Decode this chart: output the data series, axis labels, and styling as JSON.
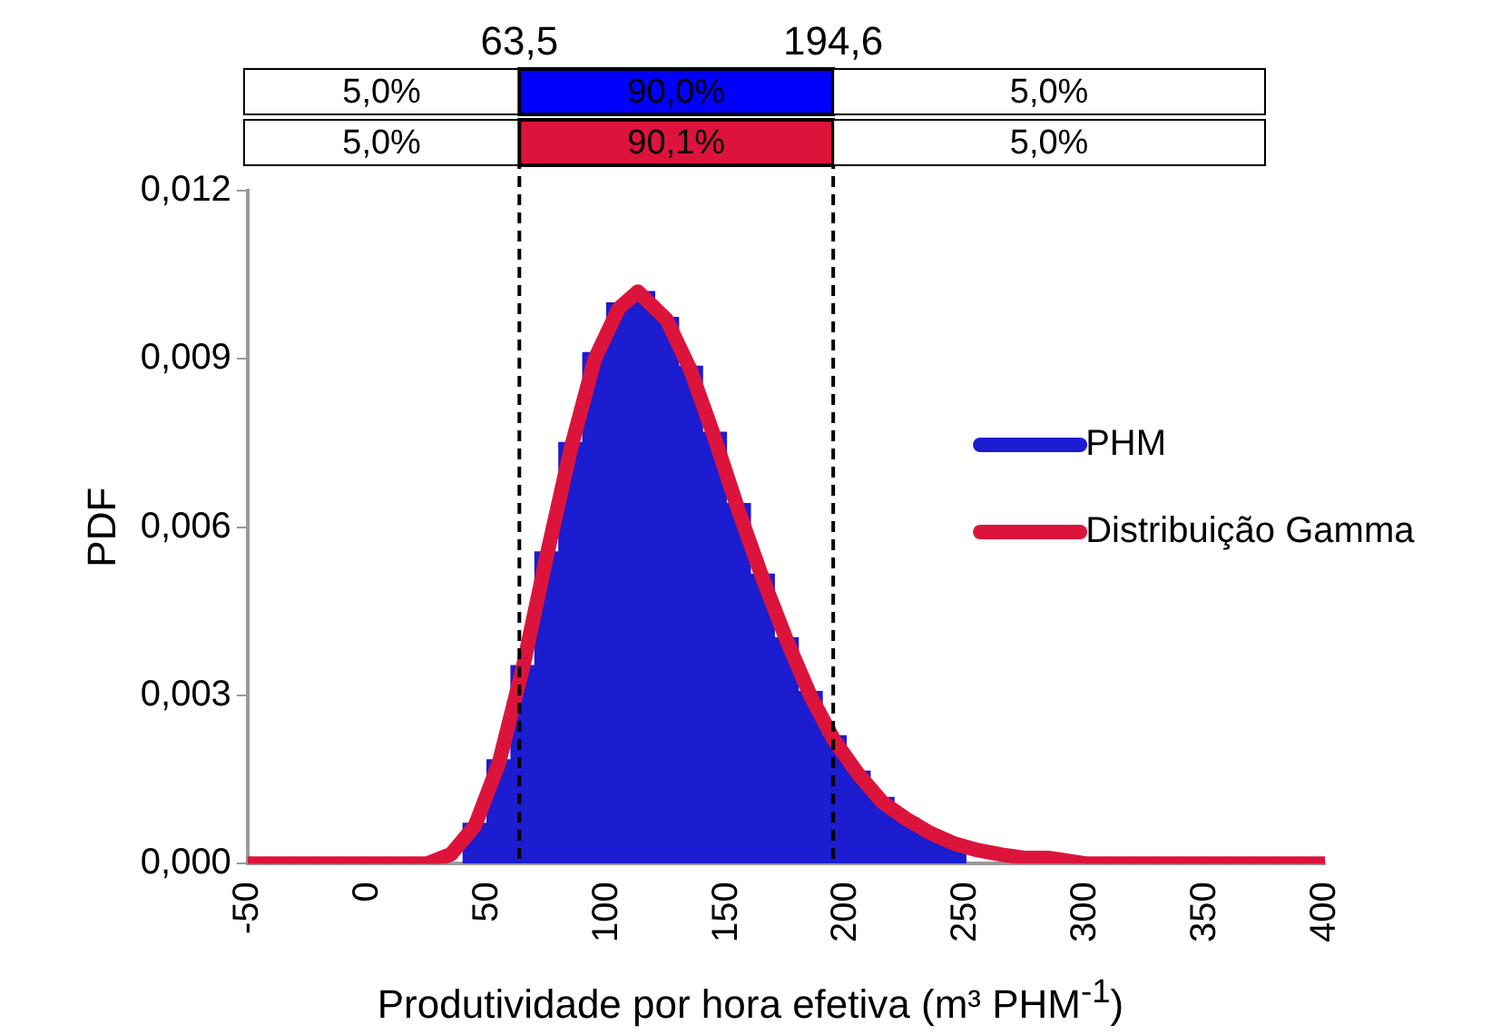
{
  "chart_data": {
    "type": "histogram",
    "xlabel": "Produtividade por hora efetiva (m³ PHM$^{-1}$)",
    "ylabel": "PDF",
    "xlim": [
      -50,
      400
    ],
    "xticks": [
      -50,
      0,
      50,
      100,
      150,
      200,
      250,
      300,
      350,
      400
    ],
    "ylim": [
      0,
      0.012
    ],
    "yticks": [
      {
        "value": 0,
        "label": "0,000"
      },
      {
        "value": 0.003,
        "label": "0,003"
      },
      {
        "value": 0.006,
        "label": "0,006"
      },
      {
        "value": 0.009,
        "label": "0,009"
      },
      {
        "value": 0.012,
        "label": "0,012"
      }
    ],
    "grid": false,
    "legend": "right",
    "series": [
      {
        "name": "PHM",
        "color": "#1c1cd0",
        "bins": [
          -50,
          -40,
          -30,
          -20,
          -10,
          0,
          10,
          20,
          30,
          40,
          50,
          60,
          70,
          80,
          90,
          100,
          110,
          120,
          130,
          140,
          150,
          160,
          170,
          180,
          190,
          200,
          210,
          220,
          230,
          240,
          250,
          260,
          270,
          280,
          290,
          300,
          310,
          320,
          330,
          340,
          350,
          360,
          370,
          380,
          390,
          400
        ],
        "values": [
          0,
          0,
          0,
          0,
          0,
          0,
          0,
          0,
          null,
          0.00072,
          0.00185,
          0.00353,
          0.00556,
          0.00751,
          0.00911,
          0.01,
          0.0102,
          0.00974,
          0.00887,
          0.00769,
          0.00642,
          0.00516,
          0.00403,
          0.00307,
          0.00228,
          0.00165,
          0.00118,
          0.00082,
          0.00057,
          0.00038,
          null,
          null,
          null,
          null,
          null,
          0,
          0,
          0,
          0,
          0,
          0,
          0,
          0,
          0,
          0
        ]
      },
      {
        "name": "Distribuição Gamma",
        "type": "line",
        "color": "#dc143c",
        "x": [
          -50,
          0,
          15,
          25,
          35,
          45,
          55,
          65,
          75,
          85,
          95,
          105,
          113,
          125,
          135,
          145,
          155,
          165,
          175,
          185,
          195,
          205,
          215,
          225,
          235,
          245,
          255,
          265,
          275,
          285,
          300,
          350,
          400
        ],
        "values": [
          0,
          0,
          0,
          0,
          0.00017,
          0.00068,
          0.0018,
          0.0035,
          0.0055,
          0.0074,
          0.009,
          0.0099,
          0.0102,
          0.0097,
          0.0088,
          0.0076,
          0.0063,
          0.0051,
          0.004,
          0.003,
          0.0022,
          0.0016,
          0.0011,
          0.0008,
          0.00055,
          0.00036,
          0.00024,
          0.00016,
          0.0001,
          0.0001,
          0,
          0,
          0
        ]
      }
    ],
    "ref_lines": [
      {
        "axis": "x",
        "value": 63.5,
        "label": "63,5",
        "line_style": "dashed",
        "color": "#000000"
      },
      {
        "axis": "x",
        "value": 194.6,
        "label": "194,6",
        "line_style": "dashed",
        "color": "#000000"
      }
    ],
    "annotations": [
      "5,0%",
      "90,0%",
      "5,0%",
      "5,0%",
      "90,1%",
      "5,0%"
    ]
  }
}
